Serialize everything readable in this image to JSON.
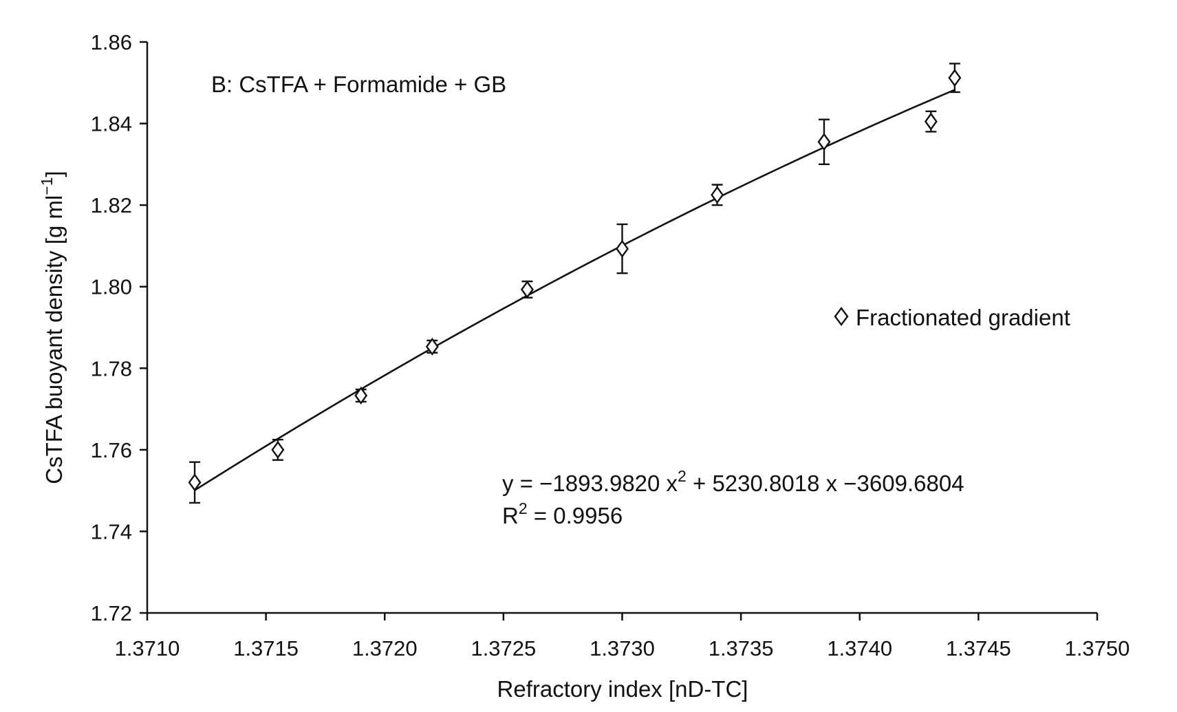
{
  "chart_data": {
    "type": "scatter",
    "annotation": "B: CsTFA + Formamide + GB",
    "xlabel": "Refractory index [nD-TC]",
    "ylabel_main": "CsTFA buoyant density [g ml",
    "ylabel_sup": "−1",
    "ylabel_close": "]",
    "xlim": [
      1.371,
      1.375
    ],
    "ylim": [
      1.72,
      1.86
    ],
    "x_ticks": [
      1.371,
      1.3715,
      1.372,
      1.3725,
      1.373,
      1.3735,
      1.374,
      1.3745,
      1.375
    ],
    "x_tick_labels": [
      "1.3710",
      "1.3715",
      "1.3720",
      "1.3725",
      "1.3730",
      "1.3735",
      "1.3740",
      "1.3745",
      "1.3750"
    ],
    "y_ticks": [
      1.72,
      1.74,
      1.76,
      1.78,
      1.8,
      1.82,
      1.84,
      1.86
    ],
    "y_tick_labels": [
      "1.72",
      "1.74",
      "1.76",
      "1.78",
      "1.80",
      "1.82",
      "1.84",
      "1.86"
    ],
    "grid": false,
    "legend_position": "right",
    "series": [
      {
        "name": "Fractionated gradient",
        "marker": "diamond-open",
        "x": [
          1.3712,
          1.37155,
          1.3719,
          1.3722,
          1.3726,
          1.373,
          1.3734,
          1.37385,
          1.3743,
          1.3744
        ],
        "y": [
          1.752,
          1.76,
          1.7733,
          1.7853,
          1.7993,
          1.8093,
          1.8225,
          1.8355,
          1.8405,
          1.8512
        ],
        "err_low": [
          0.005,
          0.0025,
          0.0015,
          0.0015,
          0.002,
          0.006,
          0.0025,
          0.0055,
          0.0025,
          0.0035
        ],
        "err_high": [
          0.005,
          0.0025,
          0.0015,
          0.0015,
          0.002,
          0.006,
          0.0025,
          0.0055,
          0.0025,
          0.0035
        ]
      }
    ],
    "fit": {
      "coefficients": [
        -1893.982,
        5230.8018,
        -3609.6804
      ],
      "x_range": [
        1.3712,
        1.3744
      ],
      "equation_lead": "y = −1893.9820 x",
      "equation_sup": "2",
      "equation_tail": " + 5230.8018 x −3609.6804",
      "r2_lead": "R",
      "r2_sup": "2",
      "r2_tail": " = 0.9956"
    }
  }
}
